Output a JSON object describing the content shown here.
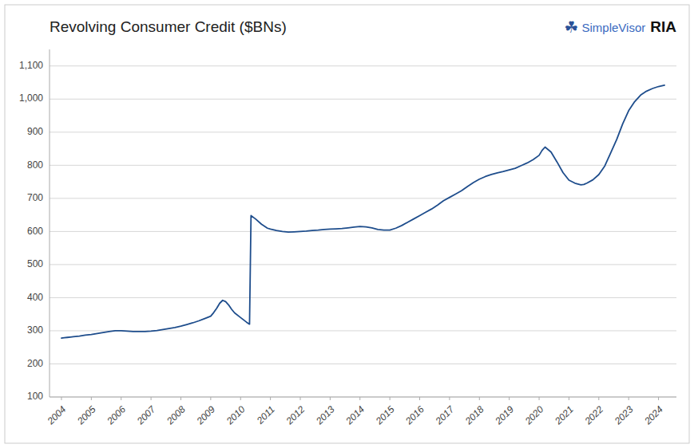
{
  "chart_data": {
    "type": "line",
    "title": "Revolving Consumer Credit ($BNs)",
    "annotations": [
      "RIA",
      "SimpleVisor",
      "☘"
    ],
    "color": "#1e4d8c",
    "grid": true,
    "xlim": [
      2003.6,
      2024.6
    ],
    "xticks": [
      2004,
      2005,
      2006,
      2007,
      2008,
      2009,
      2010,
      2011,
      2012,
      2013,
      2014,
      2015,
      2016,
      2017,
      2018,
      2019,
      2020,
      2021,
      2022,
      2023,
      2024
    ],
    "ylim": [
      100,
      1150
    ],
    "yticks": [
      100,
      200,
      300,
      400,
      500,
      600,
      700,
      800,
      900,
      {
        "value": 1000,
        "label": "1,000"
      },
      {
        "value": 1100,
        "label": "1,100"
      }
    ],
    "x": [
      2004.0,
      2004.1,
      2004.2,
      2004.3,
      2004.4,
      2004.6,
      2004.8,
      2005.0,
      2005.2,
      2005.4,
      2005.6,
      2005.8,
      2006.0,
      2006.2,
      2006.4,
      2006.6,
      2006.8,
      2007.0,
      2007.2,
      2007.4,
      2007.6,
      2007.8,
      2008.0,
      2008.2,
      2008.4,
      2008.6,
      2008.8,
      2009.0,
      2009.1,
      2009.2,
      2009.3,
      2009.4,
      2009.5,
      2009.6,
      2009.7,
      2009.8,
      2010.0,
      2010.2,
      2010.3,
      2010.35,
      2010.5,
      2010.7,
      2010.9,
      2011.0,
      2011.2,
      2011.4,
      2011.6,
      2011.8,
      2012.0,
      2012.2,
      2012.4,
      2012.6,
      2012.8,
      2013.0,
      2013.2,
      2013.4,
      2013.6,
      2013.8,
      2014.0,
      2014.2,
      2014.4,
      2014.6,
      2014.8,
      2015.0,
      2015.2,
      2015.4,
      2015.6,
      2015.8,
      2016.0,
      2016.2,
      2016.4,
      2016.6,
      2016.8,
      2017.0,
      2017.2,
      2017.4,
      2017.6,
      2017.8,
      2018.0,
      2018.2,
      2018.4,
      2018.6,
      2018.8,
      2019.0,
      2019.2,
      2019.4,
      2019.6,
      2019.8,
      2020.0,
      2020.1,
      2020.2,
      2020.4,
      2020.6,
      2020.8,
      2021.0,
      2021.2,
      2021.4,
      2021.5,
      2021.6,
      2021.8,
      2022.0,
      2022.2,
      2022.4,
      2022.6,
      2022.8,
      2023.0,
      2023.2,
      2023.4,
      2023.6,
      2023.8,
      2024.0,
      2024.2
    ],
    "values": [
      278,
      279,
      280,
      281,
      282,
      284,
      287,
      289,
      292,
      295,
      298,
      300,
      300,
      299,
      298,
      298,
      298,
      299,
      301,
      304,
      307,
      310,
      314,
      319,
      324,
      330,
      337,
      344,
      355,
      368,
      383,
      392,
      388,
      378,
      365,
      354,
      340,
      326,
      320,
      648,
      638,
      622,
      610,
      607,
      603,
      600,
      598,
      599,
      600,
      601,
      603,
      604,
      606,
      607,
      608,
      609,
      611,
      613,
      615,
      614,
      611,
      606,
      604,
      604,
      610,
      618,
      628,
      638,
      648,
      658,
      668,
      680,
      693,
      703,
      713,
      723,
      736,
      748,
      758,
      766,
      772,
      777,
      781,
      786,
      791,
      799,
      807,
      817,
      830,
      845,
      855,
      840,
      810,
      778,
      755,
      746,
      741,
      742,
      746,
      756,
      772,
      798,
      838,
      878,
      925,
      965,
      992,
      1012,
      1024,
      1032,
      1038,
      1042
    ]
  }
}
